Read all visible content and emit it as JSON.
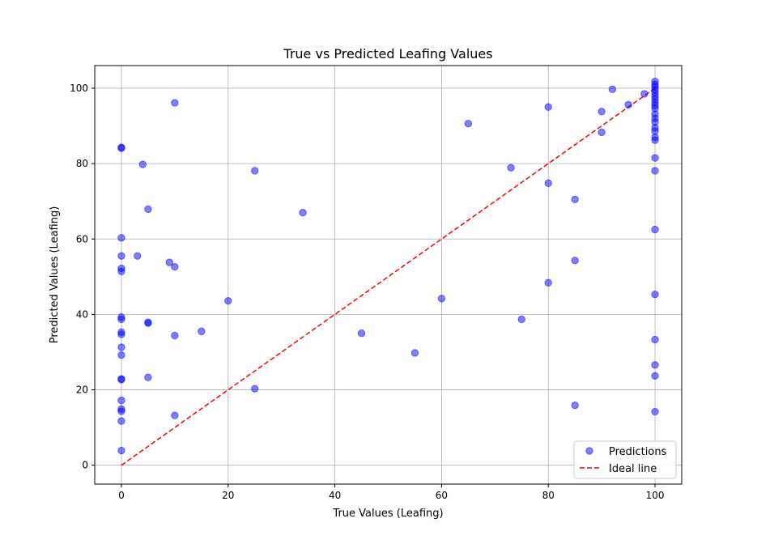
{
  "chart_data": {
    "type": "scatter",
    "title": "True vs Predicted Leafing Values",
    "xlabel": "True Values (Leafing)",
    "ylabel": "Predicted Values (Leafing)",
    "xlim": [
      -5,
      105
    ],
    "ylim": [
      -5,
      106
    ],
    "xticks": [
      0,
      20,
      40,
      60,
      80,
      100
    ],
    "yticks": [
      0,
      20,
      40,
      60,
      80,
      100
    ],
    "grid": true,
    "legend_position": "bottom-right",
    "series": [
      {
        "name": "Predictions",
        "kind": "scatter",
        "color": "#0000ff",
        "points": [
          [
            0,
            84.3
          ],
          [
            0,
            84.1
          ],
          [
            0,
            60.3
          ],
          [
            0,
            55.5
          ],
          [
            0,
            52.2
          ],
          [
            0,
            51.4
          ],
          [
            0,
            39.3
          ],
          [
            0,
            38.7
          ],
          [
            0,
            35.3
          ],
          [
            0,
            34.7
          ],
          [
            0,
            31.3
          ],
          [
            0,
            29.2
          ],
          [
            0,
            22.9
          ],
          [
            0,
            22.7
          ],
          [
            0,
            17.2
          ],
          [
            0,
            14.9
          ],
          [
            0,
            14.3
          ],
          [
            0,
            11.7
          ],
          [
            0,
            3.9
          ],
          [
            3,
            55.5
          ],
          [
            4,
            79.8
          ],
          [
            5,
            67.9
          ],
          [
            5,
            37.9
          ],
          [
            5,
            37.7
          ],
          [
            5,
            23.3
          ],
          [
            9,
            53.8
          ],
          [
            10,
            96.1
          ],
          [
            10,
            52.6
          ],
          [
            10,
            34.4
          ],
          [
            10,
            13.2
          ],
          [
            15,
            35.5
          ],
          [
            20,
            43.6
          ],
          [
            25,
            78.1
          ],
          [
            25,
            20.3
          ],
          [
            34,
            67.0
          ],
          [
            45,
            35.0
          ],
          [
            55,
            29.8
          ],
          [
            60,
            44.2
          ],
          [
            65,
            90.6
          ],
          [
            73,
            78.9
          ],
          [
            75,
            38.7
          ],
          [
            80,
            95.0
          ],
          [
            80,
            74.8
          ],
          [
            80,
            48.4
          ],
          [
            85,
            70.5
          ],
          [
            85,
            54.3
          ],
          [
            85,
            15.9
          ],
          [
            90,
            93.8
          ],
          [
            90,
            88.3
          ],
          [
            92,
            99.7
          ],
          [
            95,
            95.6
          ],
          [
            98,
            98.5
          ],
          [
            100,
            101.8
          ],
          [
            100,
            101.0
          ],
          [
            100,
            100.4
          ],
          [
            100,
            99.6
          ],
          [
            100,
            98.8
          ],
          [
            100,
            97.9
          ],
          [
            100,
            97.1
          ],
          [
            100,
            96.2
          ],
          [
            100,
            95.4
          ],
          [
            100,
            94.6
          ],
          [
            100,
            93.1
          ],
          [
            100,
            92.0
          ],
          [
            100,
            91.0
          ],
          [
            100,
            89.5
          ],
          [
            100,
            88.6
          ],
          [
            100,
            87.0
          ],
          [
            100,
            86.2
          ],
          [
            100,
            81.5
          ],
          [
            100,
            78.1
          ],
          [
            100,
            62.5
          ],
          [
            100,
            45.3
          ],
          [
            100,
            33.3
          ],
          [
            100,
            26.6
          ],
          [
            100,
            23.7
          ],
          [
            100,
            14.2
          ]
        ]
      },
      {
        "name": "Ideal line",
        "kind": "dashed-line",
        "color": "#ff0000",
        "points": [
          [
            0,
            0
          ],
          [
            100,
            100
          ]
        ]
      }
    ]
  }
}
